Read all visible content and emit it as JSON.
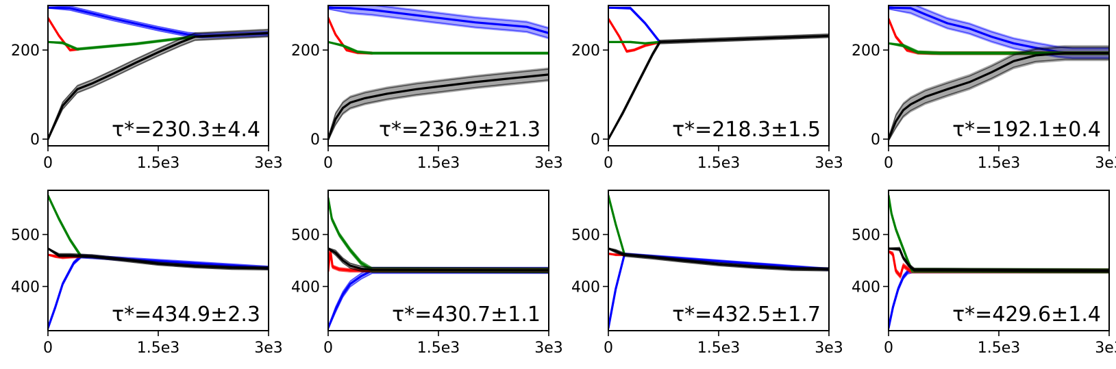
{
  "chart_data": [
    {
      "type": "line",
      "xticks": [
        "0",
        "1.5e3",
        "3e3"
      ],
      "yticks": [
        "0",
        "200"
      ],
      "xlim": [
        0,
        3000
      ],
      "ylim": [
        -15,
        300
      ],
      "annotation": "τ*=230.3±4.4",
      "series": [
        {
          "color": "#0000ff",
          "x": [
            0,
            300,
            900,
            1500,
            1900,
            2100,
            3000
          ],
          "y": [
            295,
            294,
            270,
            248,
            235,
            232,
            237
          ],
          "spread": 6
        },
        {
          "color": "#ff0000",
          "x": [
            0,
            150,
            300,
            420
          ],
          "y": [
            272,
            232,
            200,
            202
          ],
          "spread": 3
        },
        {
          "color": "#008000",
          "x": [
            0,
            200,
            400,
            800,
            1200,
            1600,
            2000
          ],
          "y": [
            218,
            216,
            202,
            208,
            214,
            222,
            230
          ],
          "spread": 3
        },
        {
          "color": "#000000",
          "x": [
            0,
            200,
            400,
            600,
            900,
            1200,
            1500,
            1800,
            2000,
            3000
          ],
          "y": [
            0,
            75,
            112,
            125,
            148,
            172,
            195,
            217,
            230,
            238
          ],
          "spread": 10
        }
      ]
    },
    {
      "type": "line",
      "xticks": [
        "0",
        "1.5e3",
        "3e3"
      ],
      "yticks": [
        "0",
        "200"
      ],
      "xlim": [
        0,
        3000
      ],
      "ylim": [
        -15,
        300
      ],
      "annotation": "τ*=236.9±21.3",
      "series": [
        {
          "color": "#0000ff",
          "x": [
            0,
            300,
            600,
            1000,
            1500,
            2000,
            2500,
            2700,
            3000
          ],
          "y": [
            295,
            294,
            290,
            282,
            272,
            262,
            255,
            252,
            238
          ],
          "spread": 14
        },
        {
          "color": "#ff0000",
          "x": [
            0,
            100,
            250,
            400,
            600
          ],
          "y": [
            272,
            235,
            200,
            194,
            193
          ],
          "spread": 3
        },
        {
          "color": "#008000",
          "x": [
            0,
            200,
            400,
            600,
            1500,
            3000
          ],
          "y": [
            218,
            210,
            196,
            193,
            193,
            193
          ],
          "spread": 3
        },
        {
          "color": "#000000",
          "x": [
            0,
            100,
            200,
            300,
            500,
            800,
            1200,
            1600,
            2000,
            2400,
            2700,
            3000
          ],
          "y": [
            0,
            45,
            70,
            82,
            92,
            102,
            112,
            120,
            128,
            135,
            140,
            145
          ],
          "spread": 16
        }
      ]
    },
    {
      "type": "line",
      "xticks": [
        "0",
        "1.5e3",
        "3e3"
      ],
      "yticks": [
        "0",
        "200"
      ],
      "xlim": [
        0,
        3000
      ],
      "ylim": [
        -15,
        300
      ],
      "annotation": "τ*=218.3±1.5",
      "series": [
        {
          "color": "#0000ff",
          "x": [
            0,
            300,
            500,
            700
          ],
          "y": [
            295,
            294,
            260,
            218
          ],
          "spread": 3
        },
        {
          "color": "#ff0000",
          "x": [
            0,
            150,
            250,
            350,
            500,
            700
          ],
          "y": [
            270,
            230,
            197,
            200,
            210,
            218
          ],
          "spread": 3
        },
        {
          "color": "#008000",
          "x": [
            0,
            300,
            500,
            700
          ],
          "y": [
            218,
            218,
            215,
            218
          ],
          "spread": 2
        },
        {
          "color": "#000000",
          "x": [
            0,
            200,
            400,
            600,
            700,
            3000
          ],
          "y": [
            0,
            60,
            125,
            190,
            218,
            232
          ],
          "spread": 5
        }
      ]
    },
    {
      "type": "line",
      "xticks": [
        "0",
        "1.5e3",
        "3e3"
      ],
      "yticks": [
        "0",
        "200"
      ],
      "xlim": [
        0,
        3000
      ],
      "ylim": [
        -15,
        300
      ],
      "annotation": "τ*=192.1±0.4",
      "series": [
        {
          "color": "#0000ff",
          "x": [
            0,
            300,
            500,
            800,
            1100,
            1400,
            1700,
            2000,
            2300,
            2500,
            3000
          ],
          "y": [
            295,
            294,
            280,
            260,
            248,
            230,
            215,
            205,
            196,
            193,
            193
          ],
          "spread": 14
        },
        {
          "color": "#ff0000",
          "x": [
            0,
            100,
            250,
            400,
            600,
            3000
          ],
          "y": [
            270,
            230,
            200,
            194,
            193,
            193
          ],
          "spread": 4
        },
        {
          "color": "#008000",
          "x": [
            0,
            200,
            400,
            700,
            3000
          ],
          "y": [
            215,
            210,
            195,
            193,
            193
          ],
          "spread": 4
        },
        {
          "color": "#000000",
          "x": [
            0,
            100,
            200,
            300,
            500,
            800,
            1100,
            1400,
            1700,
            2000,
            2400,
            3000
          ],
          "y": [
            0,
            40,
            65,
            78,
            95,
            112,
            128,
            150,
            175,
            188,
            193,
            193
          ],
          "spread": 18
        }
      ]
    },
    {
      "type": "line",
      "xticks": [
        "0",
        "1.5e3",
        "3e3"
      ],
      "yticks": [
        "400",
        "500"
      ],
      "xlim": [
        0,
        3000
      ],
      "ylim": [
        315,
        585
      ],
      "annotation": "τ*=434.9±2.3",
      "series": [
        {
          "color": "#0000ff",
          "x": [
            0,
            100,
            200,
            350,
            450,
            3000
          ],
          "y": [
            320,
            360,
            405,
            445,
            458,
            436
          ],
          "spread": 4
        },
        {
          "color": "#ff0000",
          "x": [
            0,
            100,
            200,
            300,
            450
          ],
          "y": [
            461,
            458,
            456,
            457,
            458
          ],
          "spread": 3
        },
        {
          "color": "#008000",
          "x": [
            0,
            150,
            300,
            450
          ],
          "y": [
            575,
            530,
            490,
            458
          ],
          "spread": 4
        },
        {
          "color": "#000000",
          "x": [
            0,
            150,
            300,
            600,
            1000,
            1500,
            2000,
            2500,
            3000
          ],
          "y": [
            473,
            460,
            460,
            458,
            452,
            444,
            439,
            436,
            435
          ],
          "spread": 4
        }
      ]
    },
    {
      "type": "line",
      "xticks": [
        "0",
        "1.5e3",
        "3e3"
      ],
      "yticks": [
        "400",
        "500"
      ],
      "xlim": [
        0,
        3000
      ],
      "ylim": [
        315,
        585
      ],
      "annotation": "τ*=430.7±1.1",
      "series": [
        {
          "color": "#0000ff",
          "x": [
            0,
            100,
            200,
            300,
            450,
            600,
            3000
          ],
          "y": [
            320,
            355,
            385,
            405,
            420,
            431,
            431
          ],
          "spread": 7
        },
        {
          "color": "#ff0000",
          "x": [
            0,
            30,
            60,
            150,
            300,
            600,
            3000
          ],
          "y": [
            430,
            470,
            438,
            433,
            431,
            431,
            431
          ],
          "spread": 4
        },
        {
          "color": "#008000",
          "x": [
            0,
            50,
            150,
            300,
            450,
            600,
            3000
          ],
          "y": [
            570,
            530,
            500,
            470,
            445,
            432,
            431
          ],
          "spread": 5
        },
        {
          "color": "#000000",
          "x": [
            0,
            100,
            200,
            300,
            450,
            600,
            3000
          ],
          "y": [
            473,
            465,
            450,
            440,
            434,
            432,
            431
          ],
          "spread": 6
        }
      ]
    },
    {
      "type": "line",
      "xticks": [
        "0",
        "1.5e3",
        "3e3"
      ],
      "yticks": [
        "400",
        "500"
      ],
      "xlim": [
        0,
        3000
      ],
      "ylim": [
        315,
        585
      ],
      "annotation": "τ*=432.5±1.7",
      "series": [
        {
          "color": "#0000ff",
          "x": [
            0,
            100,
            220,
            3000
          ],
          "y": [
            320,
            395,
            462,
            433
          ],
          "spread": 3
        },
        {
          "color": "#ff0000",
          "x": [
            0,
            100,
            220
          ],
          "y": [
            463,
            461,
            461
          ],
          "spread": 2
        },
        {
          "color": "#008000",
          "x": [
            0,
            100,
            220
          ],
          "y": [
            575,
            520,
            461
          ],
          "spread": 3
        },
        {
          "color": "#000000",
          "x": [
            0,
            100,
            220,
            600,
            1000,
            1500,
            2000,
            2500,
            3000
          ],
          "y": [
            473,
            468,
            461,
            456,
            450,
            443,
            438,
            434,
            433
          ],
          "spread": 4
        }
      ]
    },
    {
      "type": "line",
      "xticks": [
        "0",
        "1.5e3",
        "3e3"
      ],
      "yticks": [
        "400",
        "500"
      ],
      "xlim": [
        0,
        3000
      ],
      "ylim": [
        315,
        585
      ],
      "annotation": "τ*=429.6±1.4",
      "series": [
        {
          "color": "#0000ff",
          "x": [
            0,
            60,
            130,
            200,
            260,
            320,
            3000
          ],
          "y": [
            320,
            360,
            395,
            418,
            428,
            430,
            430
          ],
          "spread": 5
        },
        {
          "color": "#ff0000",
          "x": [
            0,
            60,
            100,
            160,
            200,
            300,
            3000
          ],
          "y": [
            468,
            462,
            430,
            420,
            440,
            430,
            430
          ],
          "spread": 5
        },
        {
          "color": "#008000",
          "x": [
            0,
            40,
            100,
            180,
            260,
            320,
            3000
          ],
          "y": [
            575,
            540,
            510,
            480,
            450,
            431,
            430
          ],
          "spread": 5
        },
        {
          "color": "#000000",
          "x": [
            0,
            150,
            200,
            280,
            350,
            3000
          ],
          "y": [
            473,
            472,
            455,
            440,
            432,
            430
          ],
          "spread": 4
        }
      ]
    }
  ]
}
